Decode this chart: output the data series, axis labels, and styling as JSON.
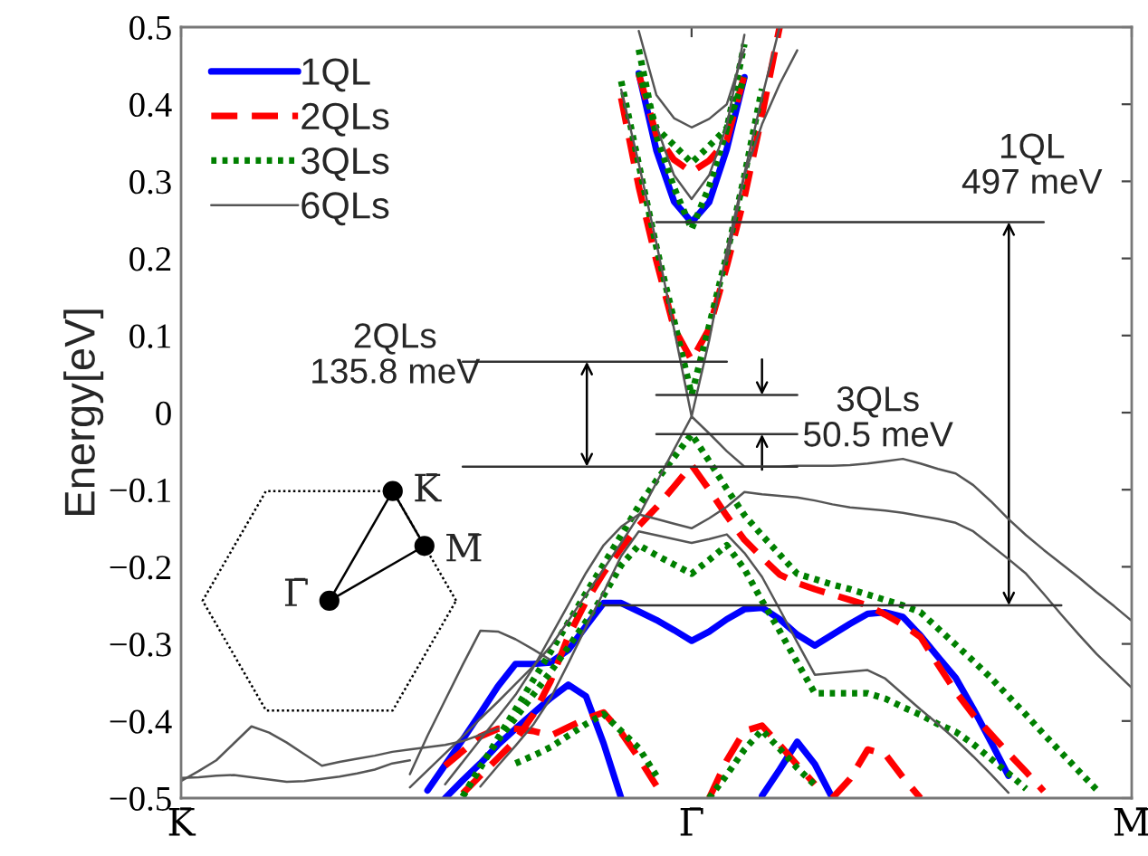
{
  "chart_data": {
    "type": "line",
    "ylabel": "Energy[eV]",
    "ylim": [
      -0.5,
      0.5
    ],
    "categories": [
      "K̄",
      null,
      null,
      null,
      null,
      null,
      null,
      null,
      null,
      null,
      null,
      null,
      null,
      null,
      null,
      null,
      null,
      null,
      null,
      null,
      null,
      null,
      null,
      null,
      null,
      null,
      null,
      null,
      null,
      "Γ̄",
      null,
      null,
      null,
      null,
      null,
      null,
      null,
      null,
      null,
      null,
      null,
      null,
      null,
      null,
      null,
      null,
      null,
      null,
      null,
      null,
      null,
      null,
      null,
      null,
      "M̄"
    ],
    "yticks": [
      -0.5,
      -0.4,
      -0.3,
      -0.2,
      -0.1,
      0,
      0.1,
      0.2,
      0.3,
      0.4,
      0.5
    ],
    "grid": false,
    "legend": "top left",
    "annotations": [
      {
        "text": "1QL\n497 meV",
        "y": 0.247
      },
      "2QLs\n135.8 meV",
      "3QLs\n50.5 meV",
      "K̄",
      "M̄",
      "Γ̄"
    ],
    "series": [
      {
        "name": "1QL",
        "color": "#0000ff",
        "line_style": "solid",
        "values": [
          null,
          null,
          null,
          null,
          null,
          null,
          null,
          null,
          null,
          null,
          null,
          null,
          null,
          null,
          null,
          null,
          null,
          null,
          null,
          null,
          null,
          null,
          null,
          null,
          null,
          null,
          0.44,
          0.34,
          0.274,
          0.247,
          0.273,
          0.342,
          0.435,
          null,
          null,
          null,
          null,
          null,
          null,
          null,
          null,
          null,
          null,
          null,
          null,
          null,
          null,
          null,
          null,
          null,
          null,
          null,
          null,
          null,
          null
        ]
      },
      {
        "color": "#0000ff",
        "line_style": "solid",
        "values": [
          null,
          null,
          null,
          null,
          null,
          null,
          null,
          null,
          null,
          null,
          null,
          null,
          null,
          null,
          -0.49,
          -0.457,
          -0.424,
          -0.39,
          -0.355,
          -0.326,
          -0.326,
          -0.324,
          -0.308,
          -0.277,
          -0.247,
          -0.247,
          -0.258,
          -0.269,
          -0.282,
          -0.296,
          -0.284,
          -0.268,
          -0.255,
          -0.253,
          -0.268,
          -0.288,
          -0.302,
          -0.288,
          -0.274,
          -0.261,
          -0.259,
          -0.265,
          -0.289,
          -0.317,
          -0.344,
          -0.384,
          -0.427,
          -0.471,
          null,
          null,
          null,
          null,
          null,
          null,
          null
        ]
      },
      {
        "color": "#0000ff",
        "line_style": "solid",
        "values": [
          null,
          null,
          null,
          null,
          null,
          null,
          null,
          null,
          null,
          null,
          null,
          null,
          null,
          null,
          null,
          -0.5,
          -0.477,
          -0.455,
          -0.431,
          -0.41,
          -0.39,
          -0.37,
          -0.353,
          -0.368,
          -0.429,
          -0.5,
          null,
          null,
          null,
          null,
          null,
          null,
          null,
          null,
          null,
          null,
          null,
          null,
          null,
          null,
          null,
          null,
          null,
          null,
          null,
          null,
          null,
          null,
          null,
          null,
          null,
          null,
          null,
          null,
          null
        ]
      },
      {
        "color": "#0000ff",
        "line_style": "solid",
        "values": [
          null,
          null,
          null,
          null,
          null,
          null,
          null,
          null,
          null,
          null,
          null,
          null,
          null,
          null,
          null,
          null,
          null,
          null,
          null,
          null,
          null,
          null,
          null,
          null,
          null,
          null,
          null,
          null,
          null,
          null,
          null,
          null,
          null,
          -0.497,
          -0.463,
          -0.427,
          -0.456,
          -0.5,
          null,
          null,
          null,
          null,
          null,
          null,
          null,
          null,
          null,
          null,
          null,
          null,
          null,
          null,
          null,
          null,
          null
        ]
      },
      {
        "name": "2QLs",
        "color": "#ff0000",
        "line_style": "dashed",
        "values": [
          null,
          null,
          null,
          null,
          null,
          null,
          null,
          null,
          null,
          null,
          null,
          null,
          null,
          null,
          null,
          null,
          null,
          null,
          null,
          null,
          null,
          null,
          null,
          null,
          null,
          0.408,
          0.293,
          0.197,
          0.11,
          0.068,
          0.109,
          0.19,
          0.279,
          0.386,
          0.5,
          null,
          null,
          null,
          null,
          null,
          null,
          null,
          null,
          null,
          null,
          null,
          null,
          null,
          null,
          null,
          null,
          null,
          null,
          null,
          null
        ]
      },
      {
        "color": "#ff0000",
        "line_style": "dashed",
        "values": [
          null,
          null,
          null,
          null,
          null,
          null,
          null,
          null,
          null,
          null,
          null,
          null,
          null,
          null,
          null,
          null,
          null,
          null,
          null,
          null,
          null,
          null,
          null,
          null,
          null,
          null,
          0.439,
          0.36,
          0.328,
          0.312,
          0.327,
          0.353,
          0.438,
          null,
          null,
          null,
          null,
          null,
          null,
          null,
          null,
          null,
          null,
          null,
          null,
          null,
          null,
          null,
          null,
          null,
          null,
          null,
          null,
          null,
          null
        ]
      },
      {
        "color": "#ff0000",
        "line_style": "dashed",
        "values": [
          null,
          null,
          null,
          null,
          null,
          null,
          null,
          null,
          null,
          null,
          null,
          null,
          null,
          null,
          null,
          null,
          -0.494,
          -0.471,
          -0.448,
          -0.425,
          -0.392,
          -0.348,
          -0.29,
          -0.245,
          -0.208,
          -0.176,
          -0.147,
          -0.123,
          -0.096,
          -0.068,
          -0.1,
          -0.134,
          -0.165,
          -0.188,
          -0.21,
          -0.221,
          -0.229,
          -0.236,
          -0.243,
          -0.25,
          -0.262,
          -0.275,
          -0.291,
          -0.327,
          -0.362,
          -0.392,
          -0.417,
          -0.442,
          -0.466,
          -0.491,
          null,
          null,
          null,
          null,
          null
        ]
      },
      {
        "color": "#ff0000",
        "line_style": "dashed",
        "values": [
          null,
          null,
          null,
          null,
          null,
          null,
          null,
          null,
          null,
          null,
          null,
          null,
          null,
          null,
          null,
          -0.458,
          -0.439,
          -0.42,
          -0.41,
          -0.41,
          -0.413,
          -0.419,
          -0.408,
          -0.397,
          -0.389,
          -0.415,
          -0.448,
          -0.484,
          null,
          null,
          null,
          null,
          null,
          null,
          null,
          null,
          null,
          null,
          null,
          null,
          null,
          null,
          null,
          null,
          null,
          null,
          null,
          null,
          null,
          null,
          null,
          null,
          null,
          null,
          null
        ]
      },
      {
        "color": "#ff0000",
        "line_style": "dashed",
        "values": [
          null,
          null,
          null,
          null,
          null,
          null,
          null,
          null,
          null,
          null,
          null,
          null,
          null,
          null,
          null,
          null,
          null,
          null,
          null,
          null,
          null,
          null,
          null,
          null,
          null,
          null,
          null,
          null,
          null,
          null,
          -0.5,
          -0.451,
          -0.413,
          -0.406,
          -0.431,
          -0.457,
          -0.482,
          null,
          null,
          null,
          null,
          null,
          null,
          null,
          null,
          null,
          null,
          null,
          null,
          null,
          null,
          null,
          null,
          null,
          null
        ]
      },
      {
        "color": "#ff0000",
        "line_style": "dashed",
        "values": [
          null,
          null,
          null,
          null,
          null,
          null,
          null,
          null,
          null,
          null,
          null,
          null,
          null,
          null,
          null,
          null,
          null,
          null,
          null,
          null,
          null,
          null,
          null,
          null,
          null,
          null,
          null,
          null,
          null,
          null,
          null,
          null,
          null,
          null,
          null,
          null,
          null,
          -0.5,
          -0.475,
          -0.437,
          -0.443,
          -0.473,
          -0.5,
          null,
          null,
          null,
          null,
          null,
          null,
          null,
          null,
          null,
          null,
          null,
          null
        ]
      },
      {
        "name": "3QLs",
        "color": "#008000",
        "line_style": "dotted",
        "values": [
          null,
          null,
          null,
          null,
          null,
          null,
          null,
          null,
          null,
          null,
          null,
          null,
          null,
          null,
          null,
          null,
          null,
          null,
          null,
          null,
          null,
          null,
          null,
          null,
          null,
          0.43,
          0.322,
          0.215,
          0.12,
          0.023,
          0.113,
          0.205,
          0.307,
          0.42,
          null,
          null,
          null,
          null,
          null,
          null,
          null,
          null,
          null,
          null,
          null,
          null,
          null,
          null,
          null,
          null,
          null,
          null,
          null,
          null,
          null
        ]
      },
      {
        "color": "#008000",
        "line_style": "dotted",
        "values": [
          null,
          null,
          null,
          null,
          null,
          null,
          null,
          null,
          null,
          null,
          null,
          null,
          null,
          null,
          null,
          null,
          null,
          null,
          null,
          null,
          null,
          null,
          null,
          null,
          null,
          null,
          0.471,
          0.359,
          0.292,
          0.238,
          0.293,
          0.368,
          0.478,
          null,
          null,
          null,
          null,
          null,
          null,
          null,
          null,
          null,
          null,
          null,
          null,
          null,
          null,
          null,
          null,
          null,
          null,
          null,
          null,
          null,
          null
        ]
      },
      {
        "color": "#008000",
        "line_style": "dotted",
        "values": [
          null,
          null,
          null,
          null,
          null,
          null,
          null,
          null,
          null,
          null,
          null,
          null,
          null,
          null,
          null,
          null,
          null,
          null,
          null,
          null,
          null,
          null,
          null,
          null,
          null,
          null,
          0.442,
          0.369,
          0.347,
          0.324,
          0.346,
          0.369,
          0.435,
          null,
          null,
          null,
          null,
          null,
          null,
          null,
          null,
          null,
          null,
          null,
          null,
          null,
          null,
          null,
          null,
          null,
          null,
          null,
          null,
          null,
          null
        ]
      },
      {
        "color": "#008000",
        "line_style": "dotted",
        "values": [
          null,
          null,
          null,
          null,
          null,
          null,
          null,
          null,
          null,
          null,
          null,
          null,
          null,
          null,
          null,
          null,
          -0.498,
          -0.461,
          -0.422,
          -0.385,
          -0.347,
          -0.31,
          -0.272,
          -0.234,
          -0.197,
          -0.159,
          -0.121,
          -0.088,
          -0.058,
          -0.028,
          -0.063,
          -0.099,
          -0.133,
          -0.159,
          -0.184,
          -0.209,
          -0.216,
          -0.223,
          -0.229,
          -0.236,
          -0.243,
          -0.25,
          -0.259,
          -0.28,
          -0.301,
          -0.322,
          -0.344,
          -0.368,
          -0.392,
          -0.417,
          -0.441,
          -0.465,
          -0.489,
          null,
          null
        ]
      },
      {
        "color": "#008000",
        "line_style": "dotted",
        "values": [
          null,
          null,
          null,
          null,
          null,
          null,
          null,
          null,
          null,
          null,
          null,
          null,
          null,
          null,
          null,
          null,
          -0.498,
          -0.459,
          -0.425,
          -0.396,
          -0.366,
          -0.336,
          -0.304,
          -0.271,
          -0.237,
          -0.198,
          -0.172,
          -0.185,
          -0.197,
          -0.209,
          -0.191,
          -0.172,
          -0.203,
          -0.244,
          -0.283,
          -0.324,
          -0.364,
          -0.364,
          -0.364,
          -0.364,
          -0.371,
          -0.382,
          -0.392,
          -0.404,
          -0.414,
          -0.43,
          -0.449,
          -0.468,
          -0.488,
          null,
          null,
          null,
          null,
          null,
          null
        ]
      },
      {
        "color": "#008000",
        "line_style": "dotted",
        "values": [
          null,
          null,
          null,
          null,
          null,
          null,
          null,
          null,
          null,
          null,
          null,
          null,
          null,
          null,
          null,
          null,
          null,
          null,
          null,
          -0.455,
          -0.445,
          -0.434,
          -0.419,
          -0.404,
          -0.391,
          -0.413,
          -0.435,
          -0.471,
          null,
          null,
          null,
          null,
          null,
          null,
          null,
          null,
          null,
          null,
          null,
          null,
          null,
          null,
          null,
          null,
          null,
          null,
          null,
          null,
          null,
          null,
          null,
          null,
          null,
          null,
          null
        ]
      },
      {
        "color": "#008000",
        "line_style": "dotted",
        "values": [
          null,
          null,
          null,
          null,
          null,
          null,
          null,
          null,
          null,
          null,
          null,
          null,
          null,
          null,
          null,
          null,
          null,
          null,
          null,
          null,
          null,
          null,
          null,
          null,
          null,
          null,
          null,
          null,
          null,
          null,
          -0.5,
          -0.47,
          -0.437,
          -0.412,
          -0.436,
          -0.461,
          -0.483,
          null,
          null,
          null,
          null,
          null,
          null,
          null,
          null,
          null,
          null,
          null,
          null,
          null,
          null,
          null,
          null,
          null,
          null
        ]
      },
      {
        "name": "6QLs",
        "color": "#555555",
        "line_style": "solid",
        "values": [
          null,
          null,
          null,
          null,
          null,
          null,
          null,
          null,
          null,
          null,
          null,
          null,
          null,
          null,
          null,
          null,
          null,
          null,
          null,
          null,
          null,
          null,
          null,
          null,
          null,
          0.419,
          0.323,
          0.22,
          0.109,
          -0.005,
          0.094,
          0.21,
          0.31,
          0.409,
          0.5,
          null,
          null,
          null,
          null,
          null,
          null,
          null,
          null,
          null,
          null,
          null,
          null,
          null,
          null,
          null,
          null,
          null,
          null,
          null,
          null
        ]
      },
      {
        "color": "#555555",
        "line_style": "solid",
        "values": [
          null,
          null,
          null,
          null,
          null,
          null,
          null,
          null,
          null,
          null,
          null,
          null,
          null,
          null,
          null,
          null,
          null,
          null,
          null,
          null,
          null,
          null,
          null,
          null,
          null,
          null,
          null,
          0.372,
          0.308,
          0.277,
          0.308,
          0.372,
          0.49,
          null,
          null,
          null,
          null,
          null,
          null,
          null,
          null,
          null,
          null,
          null,
          null,
          null,
          null,
          null,
          null,
          null,
          null,
          null,
          null,
          null,
          null
        ]
      },
      {
        "color": "#555555",
        "line_style": "solid",
        "values": [
          null,
          null,
          null,
          null,
          null,
          null,
          null,
          null,
          null,
          null,
          null,
          null,
          null,
          null,
          null,
          null,
          null,
          null,
          null,
          null,
          null,
          null,
          null,
          null,
          null,
          null,
          0.495,
          0.412,
          0.382,
          0.37,
          0.381,
          0.4,
          0.471,
          null,
          null,
          null,
          null,
          null,
          null,
          null,
          null,
          null,
          null,
          null,
          null,
          null,
          null,
          null,
          null,
          null,
          null,
          null,
          null,
          null,
          null
        ]
      },
      {
        "color": "#555555",
        "line_style": "solid",
        "values": [
          null,
          null,
          null,
          null,
          null,
          null,
          null,
          null,
          null,
          null,
          null,
          null,
          null,
          null,
          null,
          null,
          null,
          null,
          null,
          null,
          null,
          null,
          null,
          null,
          null,
          null,
          null,
          null,
          null,
          null,
          null,
          0.197,
          0.308,
          0.374,
          0.426,
          0.47,
          null,
          null,
          null,
          null,
          null,
          null,
          null,
          null,
          null,
          null,
          null,
          null,
          null,
          null,
          null,
          null,
          null,
          null,
          null
        ]
      },
      {
        "color": "#555555",
        "line_style": "solid",
        "values": [
          null,
          null,
          null,
          null,
          null,
          null,
          null,
          null,
          null,
          null,
          null,
          null,
          null,
          -0.486,
          -0.464,
          -0.442,
          -0.42,
          -0.397,
          -0.375,
          -0.352,
          -0.329,
          -0.303,
          -0.27,
          -0.236,
          -0.203,
          -0.169,
          -0.134,
          -0.091,
          -0.048,
          -0.005,
          -0.027,
          -0.05,
          -0.07,
          -0.07,
          -0.07,
          -0.069,
          -0.069,
          -0.069,
          -0.068,
          -0.066,
          -0.063,
          -0.06,
          -0.066,
          -0.073,
          -0.079,
          -0.094,
          -0.115,
          -0.138,
          -0.159,
          -0.178,
          -0.196,
          -0.214,
          -0.233,
          -0.251,
          -0.27
        ]
      },
      {
        "color": "#555555",
        "line_style": "solid",
        "values": [
          null,
          null,
          null,
          null,
          null,
          null,
          null,
          null,
          null,
          null,
          null,
          null,
          null,
          null,
          null,
          -0.482,
          -0.453,
          -0.424,
          -0.395,
          -0.366,
          -0.331,
          -0.29,
          -0.249,
          -0.208,
          -0.172,
          -0.148,
          -0.132,
          -0.138,
          -0.144,
          -0.15,
          -0.137,
          -0.122,
          -0.103,
          -0.106,
          -0.108,
          -0.11,
          -0.114,
          -0.119,
          -0.123,
          -0.125,
          -0.127,
          -0.13,
          -0.134,
          -0.138,
          -0.143,
          -0.154,
          -0.172,
          -0.19,
          -0.209,
          -0.235,
          -0.262,
          -0.288,
          -0.313,
          -0.335,
          -0.357
        ]
      },
      {
        "color": "#555555",
        "line_style": "solid",
        "values": [
          null,
          null,
          null,
          null,
          null,
          null,
          null,
          null,
          null,
          null,
          null,
          null,
          null,
          null,
          null,
          null,
          null,
          -0.485,
          -0.458,
          -0.432,
          -0.405,
          -0.37,
          -0.325,
          -0.278,
          -0.233,
          -0.186,
          -0.154,
          -0.159,
          -0.164,
          -0.169,
          -0.164,
          -0.158,
          -0.182,
          -0.213,
          -0.255,
          -0.298,
          -0.34,
          -0.338,
          -0.336,
          -0.334,
          -0.345,
          -0.365,
          -0.385,
          -0.404,
          -0.424,
          -0.446,
          -0.469,
          -0.493,
          null,
          null,
          null,
          null,
          null,
          null,
          null
        ]
      },
      {
        "color": "#555555",
        "line_style": "solid",
        "values": [
          -0.478,
          -0.465,
          -0.451,
          -0.429,
          -0.407,
          -0.415,
          -0.428,
          -0.443,
          -0.458,
          -0.453,
          -0.449,
          -0.445,
          -0.44,
          -0.437,
          -0.434,
          -0.431,
          -0.426,
          -0.418,
          -0.41,
          null,
          null,
          null,
          null,
          null,
          null,
          null,
          null,
          null,
          null,
          null,
          null,
          null,
          null,
          null,
          null,
          null,
          null,
          null,
          null,
          null,
          null,
          null,
          null,
          null,
          null,
          null,
          null,
          null,
          null,
          null,
          null,
          null,
          null,
          null,
          null
        ]
      },
      {
        "color": "#555555",
        "line_style": "solid",
        "values": [
          -0.474,
          -0.473,
          -0.471,
          -0.47,
          -0.473,
          -0.476,
          -0.479,
          -0.478,
          -0.475,
          -0.472,
          -0.468,
          -0.463,
          -0.455,
          -0.451,
          null,
          null,
          null,
          null,
          null,
          null,
          null,
          null,
          null,
          null,
          null,
          null,
          null,
          null,
          null,
          null,
          null,
          null,
          null,
          null,
          null,
          null,
          null,
          null,
          null,
          null,
          null,
          null,
          null,
          null,
          null,
          null,
          null,
          null,
          null,
          null,
          null,
          null,
          null,
          null,
          null
        ]
      },
      {
        "color": "#555555",
        "line_style": "solid",
        "values": [
          null,
          null,
          null,
          null,
          null,
          null,
          null,
          null,
          null,
          null,
          null,
          null,
          null,
          -0.469,
          -0.419,
          -0.373,
          -0.327,
          -0.283,
          -0.284,
          -0.294,
          -0.307,
          -0.321,
          null,
          null,
          null,
          null,
          null,
          null,
          null,
          null,
          null,
          null,
          null,
          null,
          null,
          null,
          null,
          null,
          null,
          null,
          null,
          null,
          null,
          null,
          null,
          null,
          null,
          null,
          null,
          null,
          null,
          null,
          null,
          null,
          null
        ]
      },
      {
        "color": "#333333",
        "line_style": "solid",
        "values": [
          null,
          null,
          null,
          null,
          null,
          null,
          null,
          null,
          null,
          null,
          null,
          null,
          null,
          null,
          null,
          null,
          null,
          null,
          null,
          null,
          null,
          null,
          null,
          null,
          null,
          null,
          null,
          0.247,
          0.247,
          0.247,
          0.247,
          0.247,
          0.247,
          0.247,
          0.247,
          0.247,
          0.247,
          0.247,
          0.247,
          0.247,
          0.247,
          0.247,
          0.247,
          0.247,
          0.247,
          0.247,
          0.247,
          0.247,
          0.247,
          0.247,
          null,
          null,
          null,
          null,
          null
        ]
      },
      {
        "color": "#333333",
        "line_style": "solid",
        "values": [
          null,
          null,
          null,
          null,
          null,
          null,
          null,
          null,
          null,
          null,
          null,
          null,
          null,
          null,
          null,
          null,
          null,
          null,
          null,
          null,
          null,
          null,
          null,
          null,
          -0.25,
          -0.25,
          -0.25,
          -0.25,
          -0.25,
          -0.25,
          -0.25,
          -0.25,
          -0.25,
          -0.25,
          -0.25,
          -0.25,
          -0.25,
          -0.25,
          -0.25,
          -0.25,
          -0.25,
          -0.25,
          -0.25,
          -0.25,
          -0.25,
          -0.25,
          -0.25,
          -0.25,
          -0.25,
          -0.25,
          -0.25,
          null,
          null,
          null,
          null
        ]
      },
      {
        "color": "#333333",
        "line_style": "solid",
        "values": [
          null,
          null,
          null,
          null,
          null,
          null,
          null,
          null,
          null,
          null,
          null,
          null,
          null,
          null,
          null,
          null,
          0.066,
          0.066,
          0.066,
          0.066,
          0.066,
          0.066,
          0.066,
          0.066,
          0.066,
          0.066,
          0.066,
          0.066,
          0.066,
          0.066,
          0.066,
          0.066,
          null,
          null,
          null,
          null,
          null,
          null,
          null,
          null,
          null,
          null,
          null,
          null,
          null,
          null,
          null,
          null,
          null,
          null,
          null,
          null,
          null,
          null,
          null
        ]
      },
      {
        "color": "#333333",
        "line_style": "solid",
        "values": [
          null,
          null,
          null,
          null,
          null,
          null,
          null,
          null,
          null,
          null,
          null,
          null,
          null,
          null,
          null,
          null,
          -0.07,
          -0.07,
          -0.07,
          -0.07,
          -0.07,
          -0.07,
          -0.07,
          -0.07,
          -0.07,
          -0.07,
          -0.07,
          -0.07,
          -0.07,
          -0.07,
          -0.07,
          -0.07,
          -0.07,
          -0.07,
          -0.07,
          -0.07,
          null,
          null,
          null,
          null,
          null,
          null,
          null,
          null,
          null,
          null,
          null,
          null,
          null,
          null,
          null,
          null,
          null,
          null,
          null
        ]
      },
      {
        "color": "#333333",
        "line_style": "solid",
        "values": [
          null,
          null,
          null,
          null,
          null,
          null,
          null,
          null,
          null,
          null,
          null,
          null,
          null,
          null,
          null,
          null,
          null,
          null,
          null,
          null,
          null,
          null,
          null,
          null,
          null,
          null,
          null,
          0.023,
          0.023,
          0.023,
          0.023,
          0.023,
          0.023,
          0.023,
          0.023,
          0.023,
          null,
          null,
          null,
          null,
          null,
          null,
          null,
          null,
          null,
          null,
          null,
          null,
          null,
          null,
          null,
          null,
          null,
          null,
          null
        ]
      },
      {
        "color": "#333333",
        "line_style": "solid",
        "values": [
          null,
          null,
          null,
          null,
          null,
          null,
          null,
          null,
          null,
          null,
          null,
          null,
          null,
          null,
          null,
          null,
          null,
          null,
          null,
          null,
          null,
          null,
          null,
          null,
          null,
          null,
          null,
          -0.028,
          -0.028,
          -0.028,
          -0.028,
          -0.028,
          -0.028,
          -0.028,
          -0.028,
          -0.028,
          null,
          null,
          null,
          null,
          null,
          null,
          null,
          null,
          null,
          null,
          null,
          null,
          null,
          null,
          null,
          null,
          null,
          null,
          null
        ]
      }
    ]
  }
}
